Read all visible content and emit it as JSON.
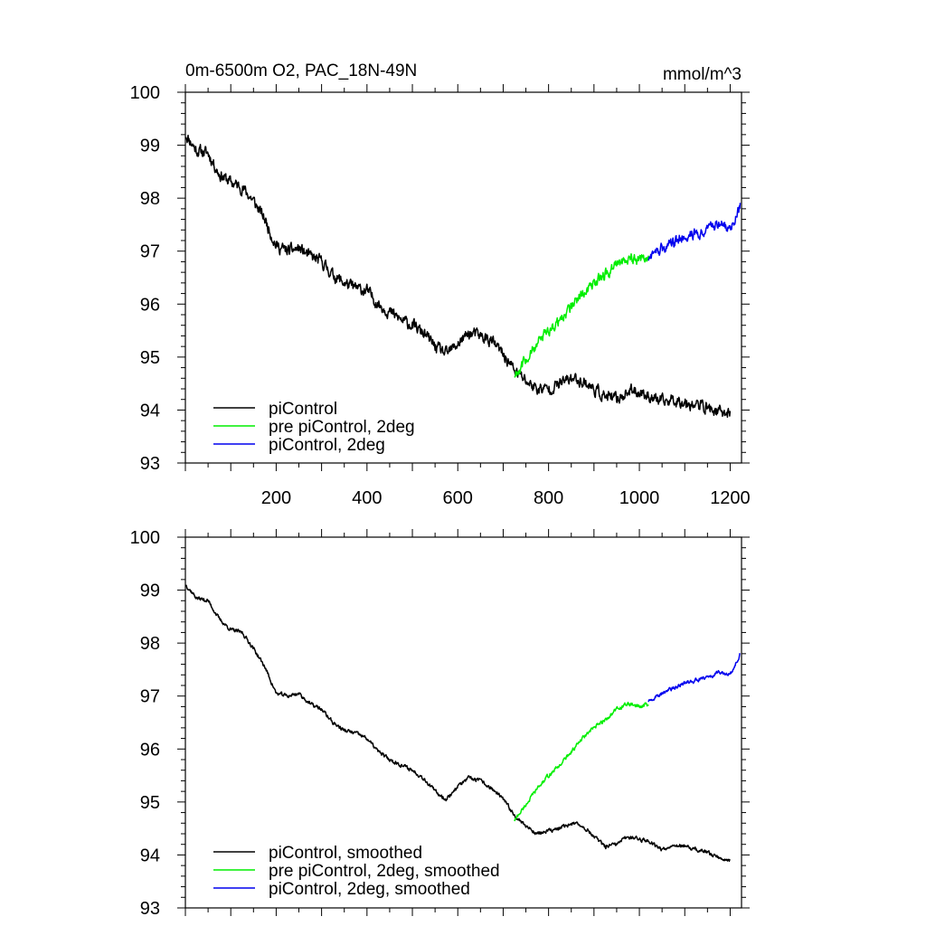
{
  "figure": {
    "title": "0m-6500m O2, PAC_18N-49N",
    "units": "mmol/m^3"
  },
  "colors": {
    "piControl": "#000000",
    "pre": "#00ee00",
    "twodeg": "#0000ee"
  },
  "chart_data": [
    {
      "type": "line",
      "panel": "top",
      "xlim": [
        0,
        1225
      ],
      "ylim": [
        93,
        100
      ],
      "xticks": [
        200,
        400,
        600,
        800,
        1000,
        1200
      ],
      "xtick_labels": [
        "200",
        "400",
        "600",
        "800",
        "1000",
        "1200"
      ],
      "yticks": [
        93,
        94,
        95,
        96,
        97,
        98,
        99,
        100
      ],
      "ytick_labels": [
        "93",
        "94",
        "95",
        "96",
        "97",
        "98",
        "99",
        "100"
      ],
      "legend_position": "bottom-left",
      "series": [
        {
          "name": "piControl",
          "color": "#000000",
          "x": [
            1,
            25,
            50,
            75,
            100,
            125,
            150,
            175,
            200,
            225,
            250,
            275,
            300,
            325,
            350,
            375,
            400,
            425,
            450,
            475,
            500,
            525,
            550,
            575,
            600,
            625,
            650,
            675,
            700,
            725,
            750,
            775,
            800,
            825,
            850,
            875,
            900,
            925,
            950,
            975,
            1000,
            1025,
            1050,
            1075,
            1100,
            1125,
            1150,
            1175,
            1200
          ],
          "y": [
            99.2,
            98.9,
            98.85,
            98.45,
            98.3,
            98.2,
            97.95,
            97.6,
            97.1,
            97.0,
            97.05,
            96.9,
            96.8,
            96.55,
            96.4,
            96.3,
            96.25,
            96.0,
            95.85,
            95.7,
            95.6,
            95.45,
            95.2,
            95.05,
            95.25,
            95.45,
            95.4,
            95.3,
            95.05,
            94.75,
            94.55,
            94.4,
            94.4,
            94.5,
            94.6,
            94.55,
            94.4,
            94.25,
            94.2,
            94.35,
            94.35,
            94.25,
            94.15,
            94.2,
            94.15,
            94.1,
            94.05,
            93.95,
            93.95
          ],
          "noise": 0.09
        },
        {
          "name": "pre piControl, 2deg",
          "color": "#00ee00",
          "x": [
            725,
            750,
            775,
            800,
            825,
            850,
            875,
            900,
            925,
            950,
            975,
            1000,
            1020
          ],
          "y": [
            94.65,
            94.95,
            95.25,
            95.5,
            95.7,
            95.95,
            96.2,
            96.4,
            96.55,
            96.75,
            96.85,
            96.85,
            96.85
          ],
          "noise": 0.08
        },
        {
          "name": "piControl, 2deg",
          "color": "#0000ee",
          "x": [
            1020,
            1050,
            1075,
            1100,
            1125,
            1150,
            1175,
            1200,
            1210,
            1222
          ],
          "y": [
            96.85,
            97.05,
            97.15,
            97.3,
            97.35,
            97.4,
            97.5,
            97.45,
            97.6,
            97.85
          ],
          "noise": 0.08
        }
      ],
      "legend": [
        {
          "label": "piControl",
          "color": "#000000"
        },
        {
          "label": "pre piControl, 2deg",
          "color": "#00ee00"
        },
        {
          "label": "piControl, 2deg",
          "color": "#0000ee"
        }
      ]
    },
    {
      "type": "line",
      "panel": "bottom",
      "xlim": [
        0,
        1225
      ],
      "ylim": [
        93,
        100
      ],
      "xticks": [
        200,
        400,
        600,
        800,
        1000,
        1200
      ],
      "yticks": [
        93,
        94,
        95,
        96,
        97,
        98,
        99,
        100
      ],
      "ytick_labels": [
        "93",
        "94",
        "95",
        "96",
        "97",
        "98",
        "99",
        "100"
      ],
      "legend_position": "bottom-left",
      "series": [
        {
          "name": "piControl, smoothed",
          "color": "#000000",
          "x": [
            1,
            25,
            50,
            75,
            100,
            125,
            150,
            175,
            200,
            225,
            250,
            275,
            300,
            325,
            350,
            375,
            400,
            425,
            450,
            475,
            500,
            525,
            550,
            575,
            600,
            625,
            650,
            675,
            700,
            725,
            750,
            775,
            800,
            825,
            850,
            875,
            900,
            925,
            950,
            975,
            1000,
            1025,
            1050,
            1075,
            1100,
            1125,
            1150,
            1175,
            1200
          ],
          "y": [
            99.1,
            98.85,
            98.8,
            98.45,
            98.25,
            98.2,
            97.9,
            97.55,
            97.05,
            97.0,
            97.05,
            96.85,
            96.75,
            96.5,
            96.35,
            96.3,
            96.2,
            95.95,
            95.8,
            95.7,
            95.6,
            95.45,
            95.2,
            95.05,
            95.3,
            95.45,
            95.4,
            95.25,
            95.05,
            94.75,
            94.55,
            94.4,
            94.45,
            94.5,
            94.6,
            94.55,
            94.35,
            94.15,
            94.2,
            94.35,
            94.3,
            94.25,
            94.1,
            94.2,
            94.15,
            94.1,
            94.05,
            93.95,
            93.9
          ],
          "noise": 0.03
        },
        {
          "name": "pre piControl, 2deg, smoothed",
          "color": "#00ee00",
          "x": [
            725,
            750,
            775,
            800,
            825,
            850,
            875,
            900,
            925,
            950,
            975,
            1000,
            1020
          ],
          "y": [
            94.65,
            94.95,
            95.25,
            95.5,
            95.7,
            95.95,
            96.2,
            96.4,
            96.55,
            96.75,
            96.85,
            96.8,
            96.85
          ],
          "noise": 0.03
        },
        {
          "name": "piControl, 2deg, smoothed",
          "color": "#0000ee",
          "x": [
            1020,
            1050,
            1075,
            1100,
            1125,
            1150,
            1175,
            1200,
            1210,
            1222
          ],
          "y": [
            96.9,
            97.05,
            97.15,
            97.25,
            97.3,
            97.35,
            97.45,
            97.4,
            97.55,
            97.8
          ],
          "noise": 0.03
        }
      ],
      "legend": [
        {
          "label": "piControl, smoothed",
          "color": "#000000"
        },
        {
          "label": "pre piControl, 2deg, smoothed",
          "color": "#00ee00"
        },
        {
          "label": "piControl, 2deg, smoothed",
          "color": "#0000ee"
        }
      ]
    }
  ]
}
